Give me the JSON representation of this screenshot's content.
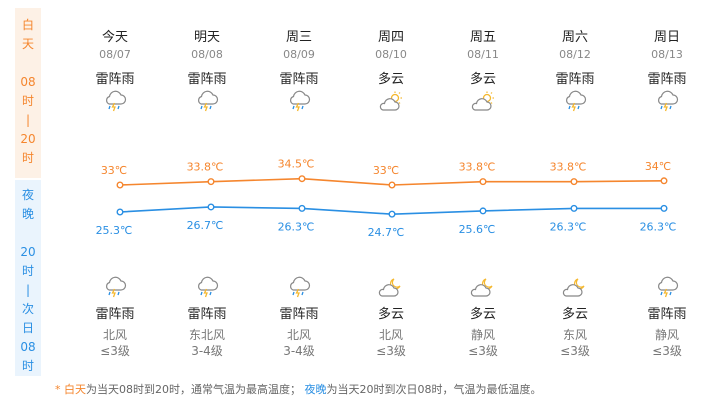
{
  "sidebar": {
    "day_chars": [
      "白",
      "天",
      "",
      "08",
      "时",
      "|",
      "20",
      "时"
    ],
    "night_chars": [
      "夜",
      "晚",
      "",
      "20",
      "时",
      "|",
      "次",
      "日",
      "08",
      "时"
    ]
  },
  "days": [
    {
      "name": "今天",
      "date": "08/07",
      "day_weather": "雷阵雨",
      "night_weather": "雷阵雨",
      "wind_dir": "北风",
      "wind_level": "≤3级",
      "day_icon": "thunder-rain-icon",
      "night_icon": "thunder-rain-icon"
    },
    {
      "name": "明天",
      "date": "08/08",
      "day_weather": "雷阵雨",
      "night_weather": "雷阵雨",
      "wind_dir": "东北风",
      "wind_level": "3-4级",
      "day_icon": "thunder-rain-icon",
      "night_icon": "thunder-rain-icon"
    },
    {
      "name": "周三",
      "date": "08/09",
      "day_weather": "雷阵雨",
      "night_weather": "雷阵雨",
      "wind_dir": "北风",
      "wind_level": "3-4级",
      "day_icon": "thunder-rain-icon",
      "night_icon": "thunder-rain-icon"
    },
    {
      "name": "周四",
      "date": "08/10",
      "day_weather": "多云",
      "night_weather": "多云",
      "wind_dir": "北风",
      "wind_level": "≤3级",
      "day_icon": "partly-cloudy-day-icon",
      "night_icon": "partly-cloudy-night-icon"
    },
    {
      "name": "周五",
      "date": "08/11",
      "day_weather": "多云",
      "night_weather": "多云",
      "wind_dir": "静风",
      "wind_level": "≤3级",
      "day_icon": "partly-cloudy-day-icon",
      "night_icon": "partly-cloudy-night-icon"
    },
    {
      "name": "周六",
      "date": "08/12",
      "day_weather": "雷阵雨",
      "night_weather": "多云",
      "wind_dir": "东风",
      "wind_level": "≤3级",
      "day_icon": "thunder-rain-icon",
      "night_icon": "partly-cloudy-night-icon"
    },
    {
      "name": "周日",
      "date": "08/13",
      "day_weather": "雷阵雨",
      "night_weather": "雷阵雨",
      "wind_dir": "静风",
      "wind_level": "≤3级",
      "day_icon": "thunder-rain-icon",
      "night_icon": "thunder-rain-icon"
    }
  ],
  "chart_data": {
    "type": "line",
    "series": [
      {
        "key": "high",
        "values": [
          33,
          33.8,
          34.5,
          33,
          33.8,
          33.8,
          34
        ],
        "labels": [
          "33℃",
          "33.8℃",
          "34.5℃",
          "33℃",
          "33.8℃",
          "33.8℃",
          "34℃"
        ],
        "color": "#f5862e"
      },
      {
        "key": "low",
        "values": [
          25.3,
          26.7,
          26.3,
          24.7,
          25.6,
          26.3,
          26.3
        ],
        "labels": [
          "25.3℃",
          "26.7℃",
          "26.3℃",
          "24.7℃",
          "25.6℃",
          "26.3℃",
          "26.3℃"
        ],
        "color": "#2a8fe3"
      }
    ]
  },
  "note": {
    "star": "* ",
    "day_term": "白天",
    "day_desc": "为当天08时到20时，通常气温为最高温度；",
    "night_term": "夜晚",
    "night_desc": "为当天20时到次日08时，气温为最低温度。"
  },
  "colors": {
    "day": "#f5862e",
    "night": "#2a8fe3",
    "day_bg": "#fdf1e6",
    "night_bg": "#eaf4fd"
  }
}
